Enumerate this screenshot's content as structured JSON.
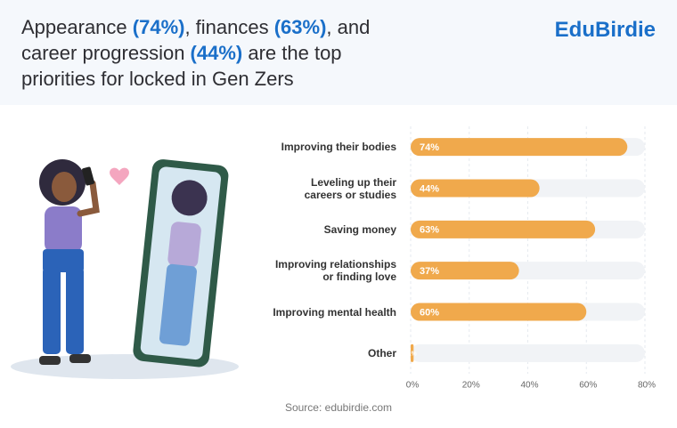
{
  "header": {
    "title": [
      "Appearance ",
      "(74%)",
      ", finances ",
      "(63%)",
      ", and career progression ",
      "(44%)",
      " are the top priorities for locked in Gen Zers"
    ],
    "logo": "EduBirdie"
  },
  "chart_data": {
    "type": "bar",
    "orientation": "horizontal",
    "categories": [
      "Improving their bodies",
      "Leveling up their\ncareers or studies",
      "Saving money",
      "Improving relationships\nor finding love",
      "Improving mental health",
      "Other"
    ],
    "values": [
      74,
      44,
      63,
      37,
      60,
      1
    ],
    "value_labels": [
      "74%",
      "44%",
      "63%",
      "37%",
      "60%",
      "1%"
    ],
    "color": "#f0a94c",
    "xlim": [
      0,
      80
    ],
    "xticks": [
      {
        "value": 0,
        "label": "0%"
      },
      {
        "value": 20,
        "label": "20%"
      },
      {
        "value": 40,
        "label": "40%"
      },
      {
        "value": 60,
        "label": "60%"
      },
      {
        "value": 80,
        "label": "80%"
      }
    ],
    "grid": true
  },
  "footer": {
    "source": "Source: edubirdie.com"
  }
}
